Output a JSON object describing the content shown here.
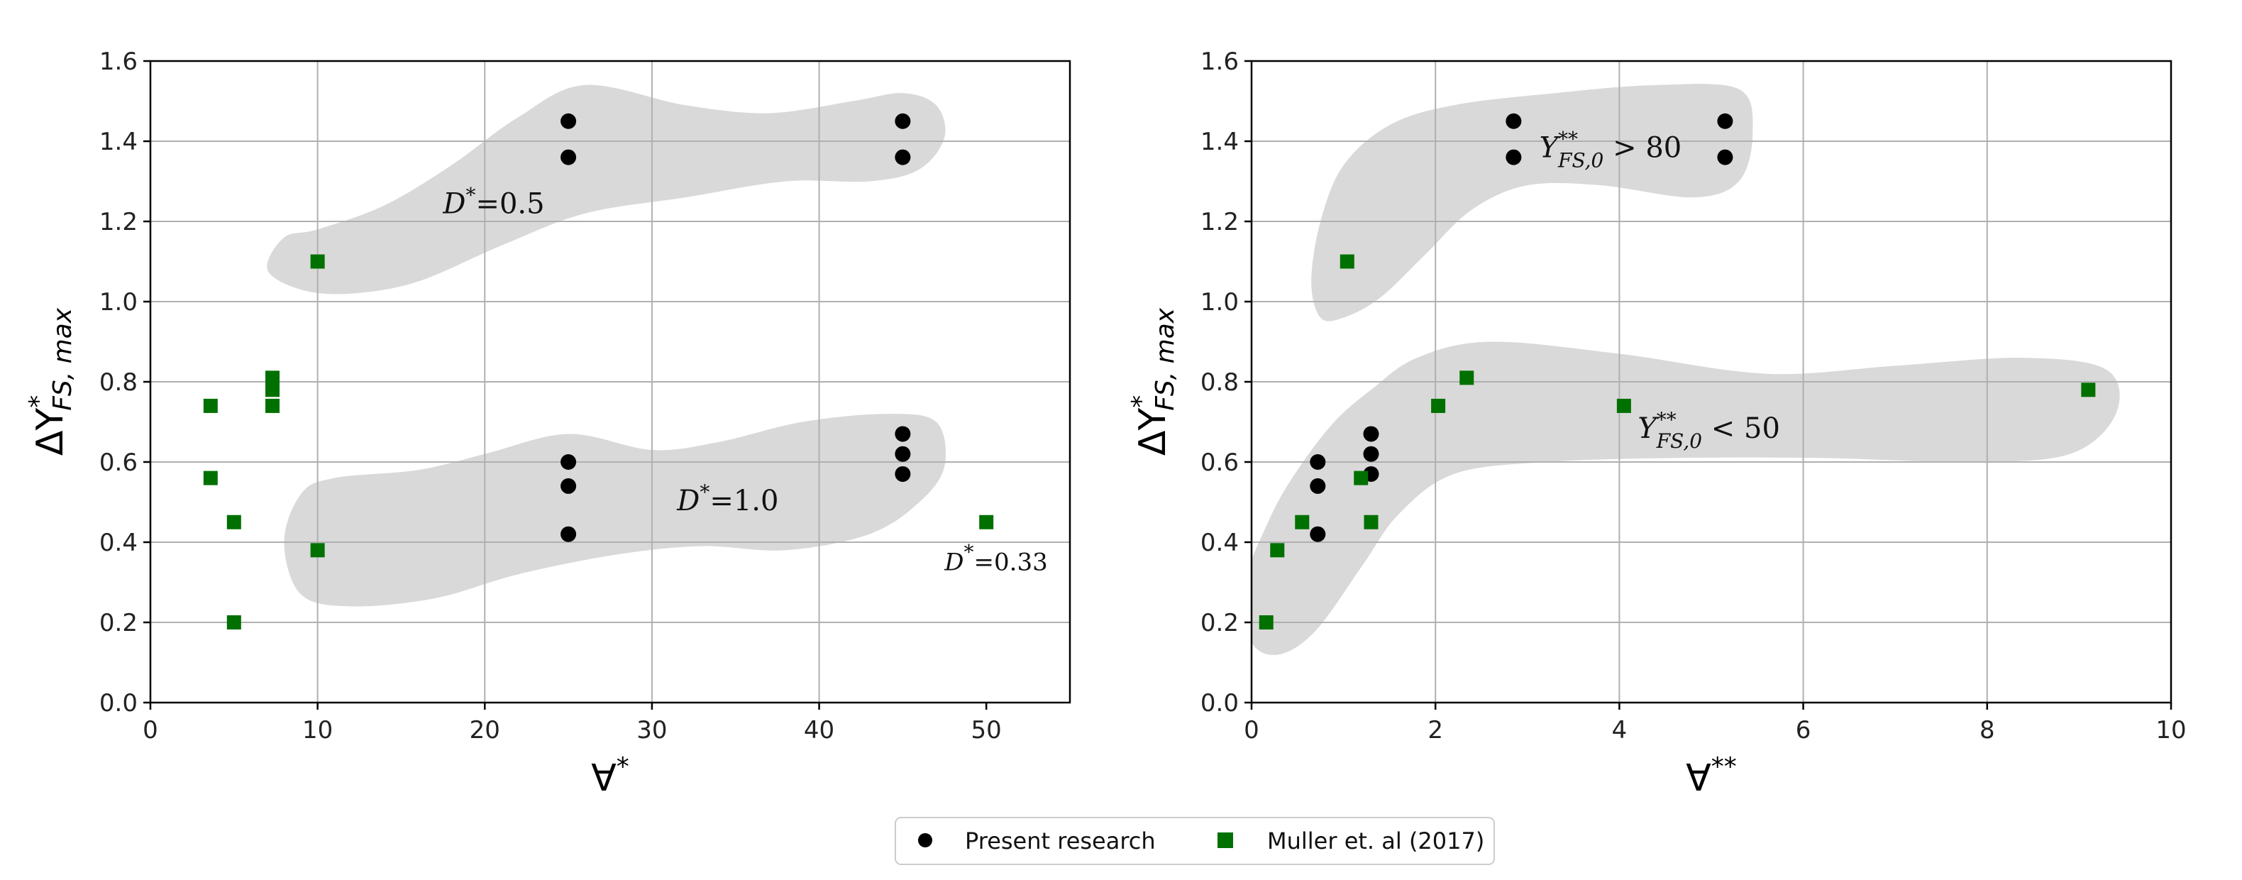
{
  "chart_data": [
    {
      "type": "scatter",
      "xlabel_symbol": "∀",
      "xlabel_sup": "*",
      "ylabel_symbol": "ΔY",
      "ylabel_sup": "*",
      "ylabel_sub": "FS, max",
      "xlim": [
        0,
        55
      ],
      "ylim": [
        0,
        1.6
      ],
      "xticks": [
        0,
        10,
        20,
        30,
        40,
        50
      ],
      "yticks": [
        0.0,
        0.2,
        0.4,
        0.6,
        0.8,
        1.0,
        1.2,
        1.4,
        1.6
      ],
      "xtick_labels": [
        "0",
        "10",
        "20",
        "30",
        "40",
        "50"
      ],
      "ytick_labels": [
        "0.0",
        "0.2",
        "0.4",
        "0.6",
        "0.8",
        "1.0",
        "1.2",
        "1.4",
        "1.6"
      ],
      "grid": true,
      "series": [
        {
          "name": "Present research",
          "marker": "circle",
          "color": "#000000",
          "points": [
            [
              25,
              1.45
            ],
            [
              25,
              1.36
            ],
            [
              45,
              1.45
            ],
            [
              45,
              1.36
            ],
            [
              25,
              0.6
            ],
            [
              25,
              0.54
            ],
            [
              25,
              0.42
            ],
            [
              45,
              0.67
            ],
            [
              45,
              0.62
            ],
            [
              45,
              0.57
            ]
          ]
        },
        {
          "name": "Muller et. al (2017)",
          "marker": "square",
          "color": "#007000",
          "points": [
            [
              10,
              1.1
            ],
            [
              3.6,
              0.74
            ],
            [
              3.6,
              0.56
            ],
            [
              5,
              0.45
            ],
            [
              5,
              0.2
            ],
            [
              7.3,
              0.81
            ],
            [
              7.3,
              0.78
            ],
            [
              7.3,
              0.74
            ],
            [
              10,
              0.38
            ],
            [
              50,
              0.45
            ]
          ]
        }
      ],
      "annotations": [
        {
          "main": "D",
          "sup": "*",
          "rest": "=0.5",
          "at": [
            17.5,
            1.22
          ],
          "size": "normal"
        },
        {
          "main": "D",
          "sup": "*",
          "rest": "=1.0",
          "at": [
            31.5,
            0.48
          ],
          "size": "normal"
        },
        {
          "main": "D",
          "sup": "*",
          "rest": "=0.33",
          "at": [
            47.5,
            0.33
          ],
          "size": "small"
        }
      ],
      "regions": [
        {
          "label": "D*=0.5",
          "outline": [
            [
              7,
              1.08
            ],
            [
              8,
              1.16
            ],
            [
              10,
              1.18
            ],
            [
              14,
              1.24
            ],
            [
              18,
              1.34
            ],
            [
              22,
              1.46
            ],
            [
              26,
              1.54
            ],
            [
              32,
              1.49
            ],
            [
              37,
              1.47
            ],
            [
              42,
              1.5
            ],
            [
              45,
              1.52
            ],
            [
              47,
              1.49
            ],
            [
              47.5,
              1.41
            ],
            [
              46,
              1.33
            ],
            [
              43,
              1.3
            ],
            [
              38,
              1.3
            ],
            [
              32,
              1.26
            ],
            [
              26,
              1.22
            ],
            [
              21,
              1.14
            ],
            [
              16,
              1.05
            ],
            [
              12,
              1.02
            ],
            [
              9,
              1.03
            ]
          ]
        },
        {
          "label": "D*=1.0",
          "outline": [
            [
              8,
              0.4
            ],
            [
              9,
              0.52
            ],
            [
              11,
              0.56
            ],
            [
              16,
              0.58
            ],
            [
              20,
              0.62
            ],
            [
              25,
              0.67
            ],
            [
              30,
              0.63
            ],
            [
              34,
              0.65
            ],
            [
              39,
              0.7
            ],
            [
              44,
              0.72
            ],
            [
              47,
              0.7
            ],
            [
              47.5,
              0.59
            ],
            [
              46,
              0.5
            ],
            [
              43,
              0.42
            ],
            [
              38,
              0.38
            ],
            [
              33,
              0.39
            ],
            [
              28,
              0.37
            ],
            [
              22,
              0.32
            ],
            [
              17,
              0.26
            ],
            [
              12,
              0.24
            ],
            [
              9,
              0.27
            ]
          ]
        }
      ]
    },
    {
      "type": "scatter",
      "xlabel_symbol": "∀",
      "xlabel_sup": "**",
      "ylabel_symbol": "ΔY",
      "ylabel_sup": "*",
      "ylabel_sub": "FS, max",
      "xlim": [
        0,
        10
      ],
      "ylim": [
        0,
        1.6
      ],
      "xticks": [
        0,
        2,
        4,
        6,
        8,
        10
      ],
      "yticks": [
        0.0,
        0.2,
        0.4,
        0.6,
        0.8,
        1.0,
        1.2,
        1.4,
        1.6
      ],
      "xtick_labels": [
        "0",
        "2",
        "4",
        "6",
        "8",
        "10"
      ],
      "ytick_labels": [
        "0.0",
        "0.2",
        "0.4",
        "0.6",
        "0.8",
        "1.0",
        "1.2",
        "1.4",
        "1.6"
      ],
      "grid": true,
      "series": [
        {
          "name": "Present research",
          "marker": "circle",
          "color": "#000000",
          "points": [
            [
              2.85,
              1.45
            ],
            [
              2.85,
              1.36
            ],
            [
              5.15,
              1.45
            ],
            [
              5.15,
              1.36
            ],
            [
              0.72,
              0.6
            ],
            [
              0.72,
              0.54
            ],
            [
              0.72,
              0.42
            ],
            [
              1.3,
              0.67
            ],
            [
              1.3,
              0.62
            ],
            [
              1.3,
              0.57
            ]
          ]
        },
        {
          "name": "Muller et. al (2017)",
          "marker": "square",
          "color": "#007000",
          "points": [
            [
              1.04,
              1.1
            ],
            [
              0.16,
              0.2
            ],
            [
              0.28,
              0.38
            ],
            [
              0.55,
              0.45
            ],
            [
              1.19,
              0.56
            ],
            [
              1.3,
              0.45
            ],
            [
              2.03,
              0.74
            ],
            [
              2.34,
              0.81
            ],
            [
              4.05,
              0.74
            ],
            [
              9.1,
              0.78
            ]
          ]
        }
      ],
      "annotations": [
        {
          "main": "Y",
          "sup": "**",
          "sub": "FS,0",
          "rest": " > 80",
          "at": [
            3.13,
            1.36
          ]
        },
        {
          "main": "Y",
          "sup": "**",
          "sub": "FS,0",
          "rest": " < 50",
          "at": [
            4.2,
            0.66
          ]
        }
      ],
      "regions": [
        {
          "label": "Y** > 80",
          "outline": [
            [
              0.65,
              1.05
            ],
            [
              0.75,
              1.2
            ],
            [
              1.0,
              1.34
            ],
            [
              1.5,
              1.44
            ],
            [
              2.2,
              1.49
            ],
            [
              3.3,
              1.52
            ],
            [
              4.4,
              1.54
            ],
            [
              5.3,
              1.53
            ],
            [
              5.45,
              1.42
            ],
            [
              5.3,
              1.3
            ],
            [
              4.8,
              1.26
            ],
            [
              3.8,
              1.29
            ],
            [
              3.0,
              1.29
            ],
            [
              2.4,
              1.23
            ],
            [
              1.9,
              1.12
            ],
            [
              1.4,
              1.01
            ],
            [
              1.0,
              0.96
            ],
            [
              0.75,
              0.96
            ]
          ]
        },
        {
          "label": "Y** < 50",
          "outline": [
            [
              -0.1,
              0.28
            ],
            [
              0.2,
              0.46
            ],
            [
              0.5,
              0.58
            ],
            [
              0.9,
              0.7
            ],
            [
              1.3,
              0.78
            ],
            [
              1.8,
              0.86
            ],
            [
              2.6,
              0.9
            ],
            [
              4.0,
              0.87
            ],
            [
              5.6,
              0.82
            ],
            [
              7.0,
              0.84
            ],
            [
              8.4,
              0.86
            ],
            [
              9.3,
              0.83
            ],
            [
              9.4,
              0.72
            ],
            [
              8.9,
              0.62
            ],
            [
              7.8,
              0.6
            ],
            [
              6.2,
              0.61
            ],
            [
              4.6,
              0.61
            ],
            [
              3.2,
              0.6
            ],
            [
              2.2,
              0.57
            ],
            [
              1.6,
              0.47
            ],
            [
              1.2,
              0.34
            ],
            [
              0.7,
              0.18
            ],
            [
              0.3,
              0.12
            ],
            [
              0.0,
              0.15
            ]
          ]
        }
      ]
    }
  ],
  "legend": {
    "placement": "bottom-center",
    "items": [
      {
        "label": "Present research",
        "marker": "circle",
        "color": "#000000"
      },
      {
        "label": "Muller et. al (2017)",
        "marker": "square",
        "color": "#007000"
      }
    ]
  }
}
